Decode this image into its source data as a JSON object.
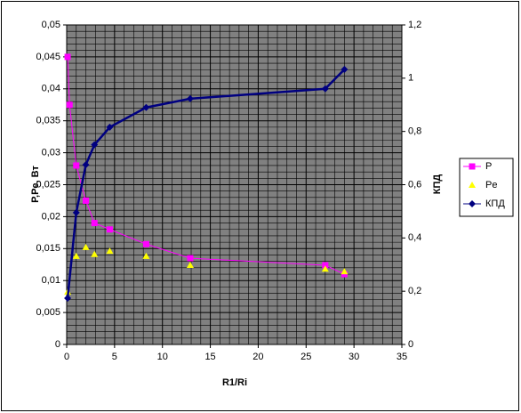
{
  "chart_data": {
    "type": "scatter",
    "x_label": "R1/Ri",
    "y_label": "P,Pe, Вт",
    "y2_label": "КПД",
    "xlim": [
      0,
      35
    ],
    "xticks": [
      0,
      5,
      10,
      15,
      20,
      25,
      30,
      35
    ],
    "ylim": [
      0,
      0.05
    ],
    "yticks": [
      0,
      {
        "value": 0.005,
        "label": "0,005"
      },
      {
        "value": 0.01,
        "label": "0,01"
      },
      {
        "value": 0.015,
        "label": "0,015"
      },
      {
        "value": 0.02,
        "label": "0,02"
      },
      {
        "value": 0.025,
        "label": "0,025"
      },
      {
        "value": 0.03,
        "label": "0,03"
      },
      {
        "value": 0.035,
        "label": "0,035"
      },
      {
        "value": 0.04,
        "label": "0,04"
      },
      {
        "value": 0.045,
        "label": "0,045"
      },
      {
        "value": 0.05,
        "label": "0,05"
      }
    ],
    "y2lim": [
      0,
      1.2
    ],
    "y2ticks": [
      0,
      {
        "value": 0.2,
        "label": "0,2"
      },
      {
        "value": 0.4,
        "label": "0,4"
      },
      {
        "value": 0.6,
        "label": "0,6"
      },
      {
        "value": 0.8,
        "label": "0,8"
      },
      1,
      {
        "value": 1.2,
        "label": "1,2"
      }
    ],
    "grid": true,
    "legend": "right",
    "series": [
      {
        "name": "P",
        "color": "#ff00ff",
        "marker": "square",
        "line": true,
        "x": [
          0.1,
          0.3,
          1,
          2,
          2.9,
          4.5,
          8.3,
          12.9,
          27,
          29
        ],
        "values": [
          0.045,
          0.0375,
          0.028,
          0.0225,
          0.019,
          0.018,
          0.0157,
          0.0135,
          0.0124,
          0.011
        ]
      },
      {
        "name": "Pe",
        "color": "#ffff00",
        "marker": "triangle",
        "line": false,
        "x": [
          0.1,
          1,
          2,
          2.9,
          4.5,
          8.3,
          12.9,
          27,
          29
        ],
        "values": [
          0.0082,
          0.0138,
          0.0152,
          0.0141,
          0.0146,
          0.0138,
          0.0124,
          0.0118,
          0.0114
        ]
      },
      {
        "name": "КПД",
        "color": "#000080",
        "marker": "diamond",
        "line": true,
        "axis": "y2",
        "x": [
          0.1,
          1,
          2,
          2.9,
          4.5,
          8.3,
          12.9,
          27,
          29
        ],
        "values": [
          0.174,
          0.495,
          0.675,
          0.75,
          0.816,
          0.89,
          0.923,
          0.96,
          1.033
        ]
      }
    ]
  }
}
